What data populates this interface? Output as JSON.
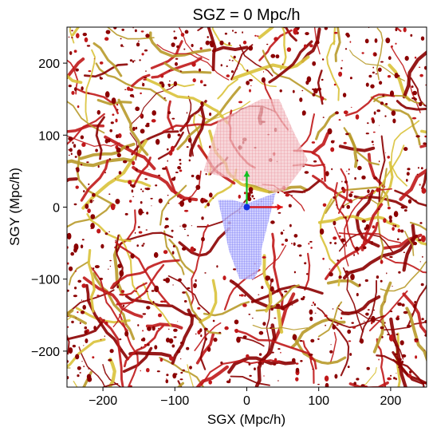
{
  "chart_data": {
    "type": "heatmap",
    "title": "SGZ = 0 Mpc/h",
    "xlabel": "SGX (Mpc/h)",
    "ylabel": "SGY (Mpc/h)",
    "xlim": [
      -250,
      250
    ],
    "ylim": [
      -250,
      250
    ],
    "xticks": [
      -200,
      -100,
      0,
      100,
      200
    ],
    "yticks": [
      -200,
      -100,
      0,
      100,
      200
    ],
    "xtick_labels": [
      "−200",
      "−100",
      "0",
      "100",
      "200"
    ],
    "ytick_labels": [
      "−200",
      "−100",
      "0",
      "100",
      "200"
    ],
    "grid": false,
    "colors": {
      "filaments_dark": "#8b0000",
      "filaments_red": "#c0181a",
      "filaments_gold": "#b89a2a",
      "filaments_yellow": "#d9c23a",
      "red_region": "#e8a0a8",
      "blue_region": "#7878ff",
      "arrow_x": "#e01010",
      "arrow_y": "#10c020",
      "origin_marker": "#1030e0"
    },
    "regions": [
      {
        "color": "red",
        "polygon": [
          [
            -40,
            120
          ],
          [
            20,
            150
          ],
          [
            45,
            150
          ],
          [
            65,
            105
          ],
          [
            85,
            65
          ],
          [
            55,
            25
          ],
          [
            40,
            20
          ],
          [
            0,
            35
          ],
          [
            -45,
            45
          ],
          [
            -60,
            50
          ]
        ]
      },
      {
        "color": "blue",
        "polygon": [
          [
            -40,
            10
          ],
          [
            -20,
            10
          ],
          [
            0,
            5
          ],
          [
            40,
            20
          ],
          [
            20,
            -60
          ],
          [
            20,
            -80
          ],
          [
            10,
            -100
          ],
          [
            -10,
            -100
          ],
          [
            -25,
            -60
          ]
        ]
      }
    ],
    "vectors": [
      {
        "from": [
          0,
          0
        ],
        "to": [
          50,
          0
        ],
        "color": "red"
      },
      {
        "from": [
          0,
          0
        ],
        "to": [
          0,
          50
        ],
        "color": "green"
      }
    ]
  }
}
